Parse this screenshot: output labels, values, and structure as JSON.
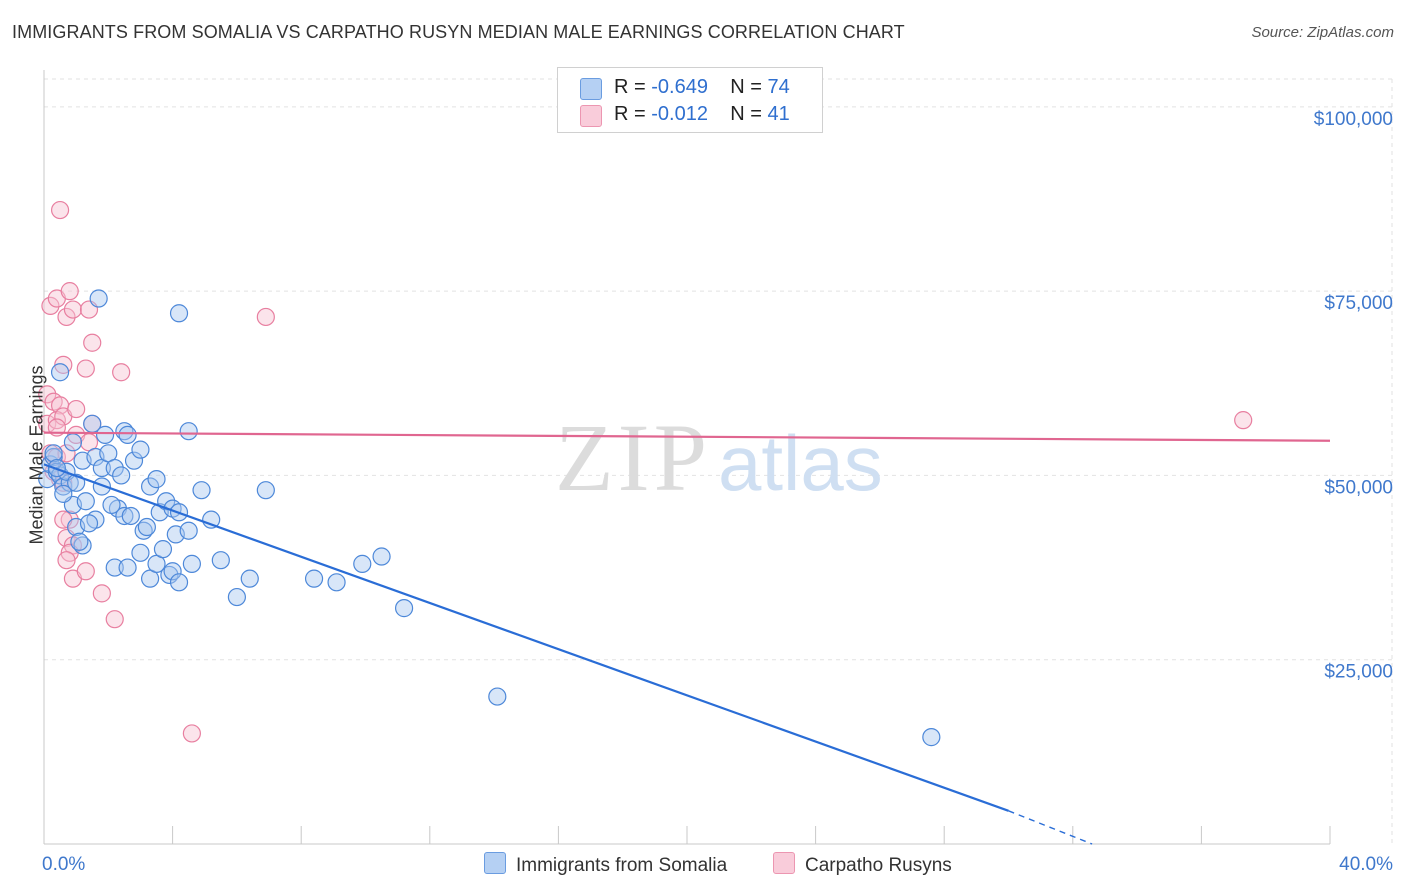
{
  "title": "IMMIGRANTS FROM SOMALIA VS CARPATHO RUSYN MEDIAN MALE EARNINGS CORRELATION CHART",
  "source": "Source: ZipAtlas.com",
  "legend": {
    "series1": {
      "r_label": "R =",
      "r_value": "-0.649",
      "n_label": "N =",
      "n_value": "74"
    },
    "series2": {
      "r_label": "R =",
      "r_value": "-0.012",
      "n_label": "N =",
      "n_value": "41"
    }
  },
  "watermark": {
    "zip": "ZIP",
    "atlas": "atlas"
  },
  "colors": {
    "somalia_fill": "#a9c8f0",
    "somalia_stroke": "#4d88d9",
    "somalia_line": "#2a6dd6",
    "rusyn_fill": "#f7c3d3",
    "rusyn_stroke": "#e87fa0",
    "rusyn_line": "#e06690",
    "tick_label": "#3f78cc",
    "grid": "#e2e2e2"
  },
  "chart_data": {
    "type": "scatter",
    "xlabel": "",
    "ylabel": "Median Male Earnings",
    "xlim": [
      0,
      40
    ],
    "ylim": [
      0,
      105000
    ],
    "x_tick_labels": [
      "0.0%",
      "40.0%"
    ],
    "y_ticks": [
      25000,
      50000,
      75000,
      100000
    ],
    "y_tick_labels": [
      "$25,000",
      "$50,000",
      "$75,000",
      "$100,000"
    ],
    "series": [
      {
        "name": "Immigrants from Somalia",
        "points": [
          [
            0.1,
            49500
          ],
          [
            0.2,
            51500
          ],
          [
            0.3,
            52500
          ],
          [
            0.4,
            50500
          ],
          [
            0.5,
            50000
          ],
          [
            0.3,
            53000
          ],
          [
            0.6,
            48500
          ],
          [
            0.8,
            49000
          ],
          [
            0.7,
            50500
          ],
          [
            0.5,
            64000
          ],
          [
            0.9,
            54500
          ],
          [
            1.0,
            49000
          ],
          [
            1.2,
            52000
          ],
          [
            1.5,
            57000
          ],
          [
            1.6,
            52500
          ],
          [
            1.8,
            51000
          ],
          [
            1.9,
            55500
          ],
          [
            2.0,
            53000
          ],
          [
            2.2,
            51000
          ],
          [
            2.5,
            56000
          ],
          [
            2.6,
            55500
          ],
          [
            2.8,
            52000
          ],
          [
            3.0,
            53500
          ],
          [
            1.7,
            74000
          ],
          [
            4.2,
            72000
          ],
          [
            4.5,
            56000
          ],
          [
            0.9,
            46000
          ],
          [
            1.3,
            46500
          ],
          [
            1.0,
            43000
          ],
          [
            1.2,
            40500
          ],
          [
            1.6,
            44000
          ],
          [
            2.3,
            45500
          ],
          [
            2.5,
            44500
          ],
          [
            2.7,
            44500
          ],
          [
            3.1,
            42500
          ],
          [
            3.3,
            48500
          ],
          [
            3.5,
            49500
          ],
          [
            3.6,
            45000
          ],
          [
            3.8,
            46500
          ],
          [
            4.0,
            45500
          ],
          [
            4.1,
            42000
          ],
          [
            4.2,
            45000
          ],
          [
            4.5,
            42500
          ],
          [
            4.9,
            48000
          ],
          [
            5.2,
            44000
          ],
          [
            6.9,
            48000
          ],
          [
            2.2,
            37500
          ],
          [
            2.6,
            37500
          ],
          [
            3.0,
            39500
          ],
          [
            3.3,
            36000
          ],
          [
            3.5,
            38000
          ],
          [
            3.7,
            40000
          ],
          [
            3.9,
            36500
          ],
          [
            4.0,
            37000
          ],
          [
            4.2,
            35500
          ],
          [
            4.6,
            38000
          ],
          [
            5.5,
            38500
          ],
          [
            6.0,
            33500
          ],
          [
            6.4,
            36000
          ],
          [
            8.4,
            36000
          ],
          [
            9.1,
            35500
          ],
          [
            9.9,
            38000
          ],
          [
            10.5,
            39000
          ],
          [
            11.2,
            32000
          ],
          [
            14.1,
            20000
          ],
          [
            27.6,
            14500
          ],
          [
            1.1,
            41000
          ],
          [
            1.4,
            43500
          ],
          [
            2.1,
            46000
          ],
          [
            3.2,
            43000
          ],
          [
            0.6,
            47500
          ],
          [
            1.8,
            48500
          ],
          [
            2.4,
            50000
          ],
          [
            0.4,
            51000
          ]
        ]
      },
      {
        "name": "Carpatho Rusyns",
        "points": [
          [
            0.5,
            86000
          ],
          [
            0.2,
            73000
          ],
          [
            0.4,
            74000
          ],
          [
            0.8,
            75000
          ],
          [
            0.7,
            71500
          ],
          [
            0.9,
            72500
          ],
          [
            1.4,
            72500
          ],
          [
            6.9,
            71500
          ],
          [
            1.5,
            68000
          ],
          [
            0.6,
            65000
          ],
          [
            1.3,
            64500
          ],
          [
            2.4,
            64000
          ],
          [
            0.1,
            61000
          ],
          [
            0.3,
            60000
          ],
          [
            0.5,
            59500
          ],
          [
            0.1,
            57000
          ],
          [
            0.4,
            57500
          ],
          [
            0.6,
            58000
          ],
          [
            1.0,
            59000
          ],
          [
            1.5,
            57000
          ],
          [
            0.2,
            53000
          ],
          [
            0.4,
            52500
          ],
          [
            0.7,
            53000
          ],
          [
            1.0,
            55500
          ],
          [
            1.4,
            54500
          ],
          [
            0.3,
            50500
          ],
          [
            0.5,
            49500
          ],
          [
            0.6,
            49000
          ],
          [
            0.8,
            44000
          ],
          [
            0.7,
            41500
          ],
          [
            0.9,
            40500
          ],
          [
            0.8,
            39500
          ],
          [
            0.7,
            38500
          ],
          [
            0.9,
            36000
          ],
          [
            1.3,
            37000
          ],
          [
            1.8,
            34000
          ],
          [
            2.2,
            30500
          ],
          [
            4.6,
            15000
          ],
          [
            37.3,
            57500
          ],
          [
            0.6,
            44000
          ],
          [
            0.4,
            56500
          ]
        ]
      }
    ],
    "trend_lines": [
      {
        "name": "Immigrants from Somalia",
        "x": [
          0,
          30
        ],
        "y": [
          51500,
          4500
        ],
        "dashed_to": [
          32.6,
          0
        ]
      },
      {
        "name": "Carpatho Rusyns",
        "x": [
          0,
          40
        ],
        "y": [
          55800,
          54700
        ]
      }
    ]
  }
}
